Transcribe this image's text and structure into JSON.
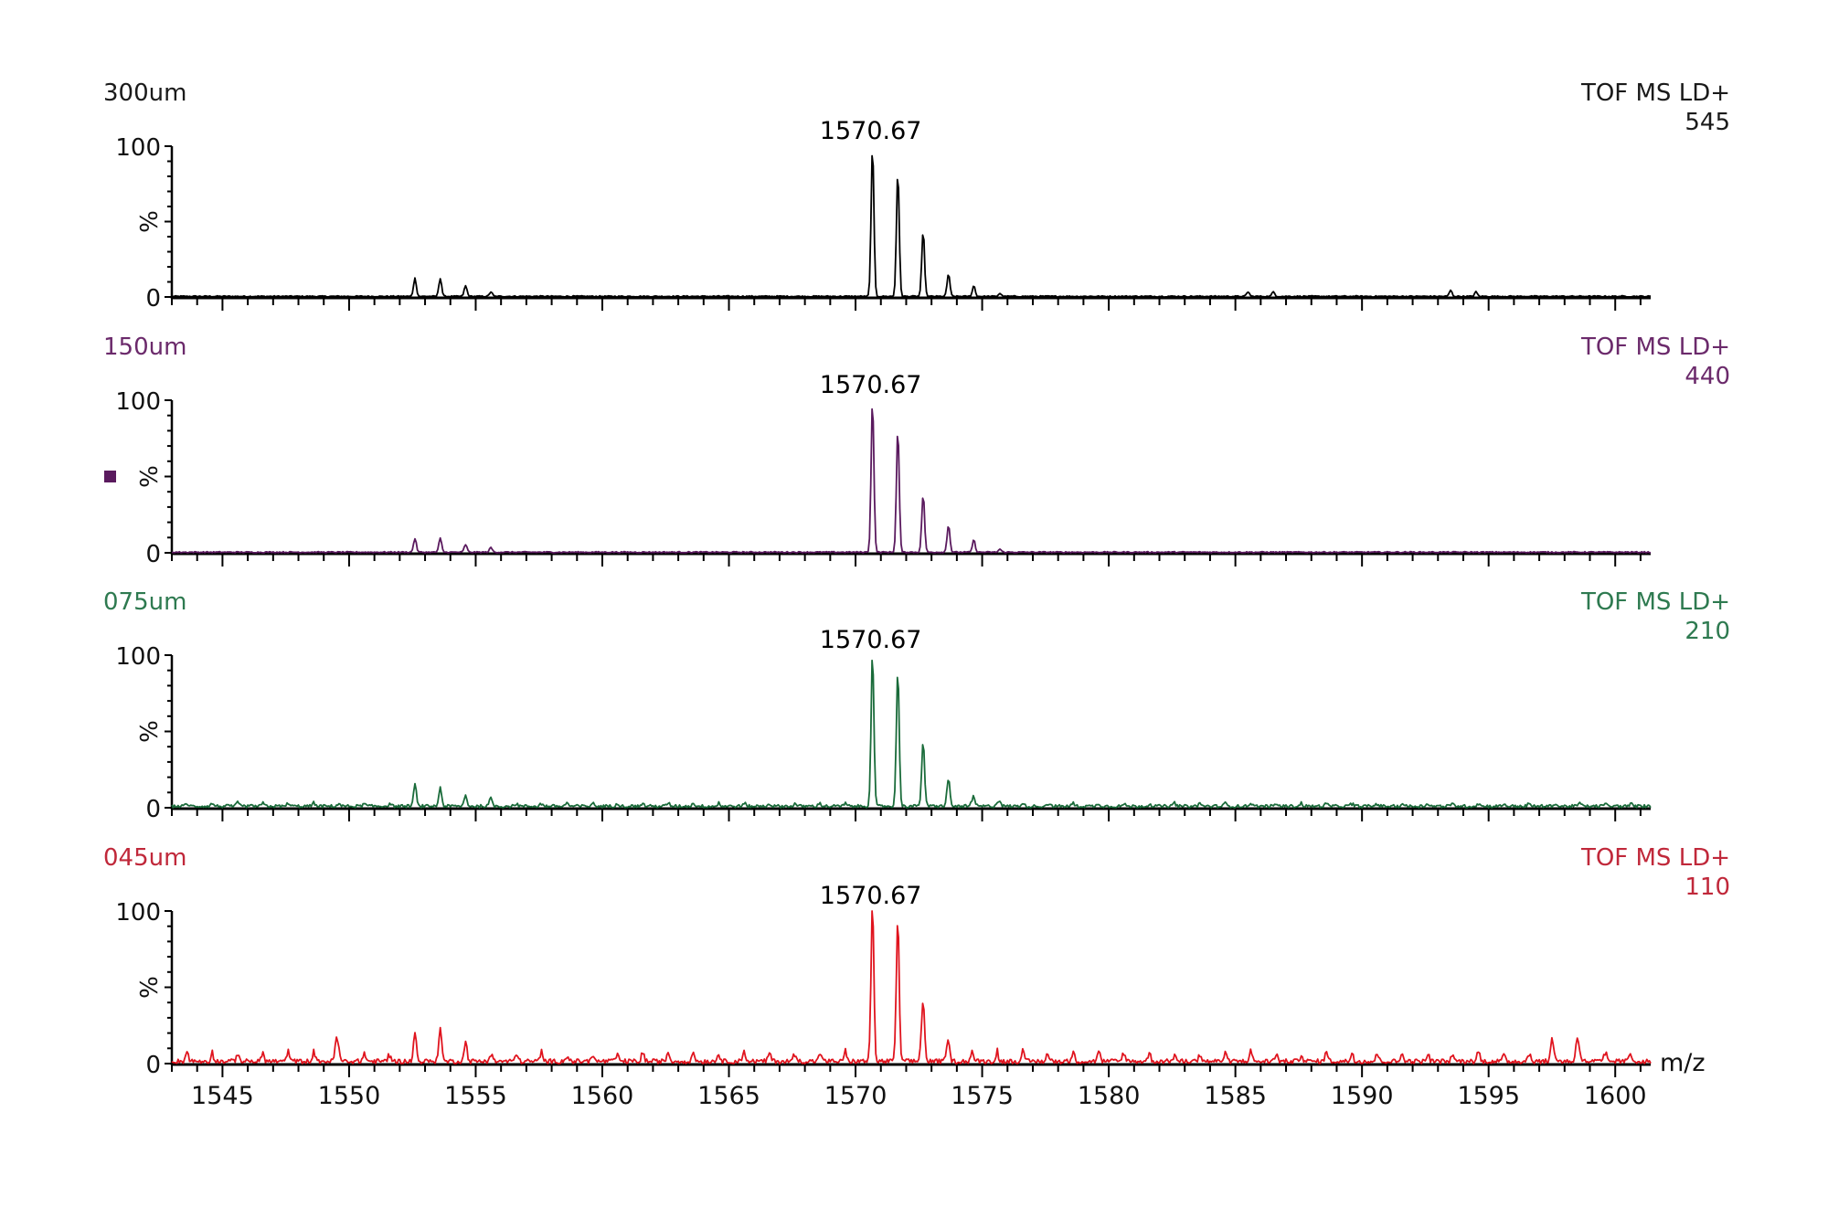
{
  "chart_data": {
    "type": "line",
    "title": "",
    "xlabel": "m/z",
    "ylabel": "%",
    "xlim": [
      1543.0,
      1601.4
    ],
    "ylim": [
      0,
      100
    ],
    "x_ticks": [
      1545,
      1550,
      1555,
      1560,
      1565,
      1570,
      1575,
      1580,
      1585,
      1590,
      1595,
      1600
    ],
    "y_ticks": [
      0,
      100
    ],
    "grid": false,
    "legend": "none",
    "panels": [
      {
        "name": "300um",
        "color": "#000000",
        "label_color": "#1a1a1a",
        "mode": "TOF MS LD+",
        "intensity": "545",
        "peak_label": "1570.67",
        "noise": 0.8,
        "noise_peaks": 0.0,
        "peaks": [
          {
            "mz": 1552.6,
            "pct": 12
          },
          {
            "mz": 1553.6,
            "pct": 12
          },
          {
            "mz": 1554.6,
            "pct": 7
          },
          {
            "mz": 1555.6,
            "pct": 3
          },
          {
            "mz": 1570.67,
            "pct": 100
          },
          {
            "mz": 1571.67,
            "pct": 83
          },
          {
            "mz": 1572.67,
            "pct": 43
          },
          {
            "mz": 1573.67,
            "pct": 15
          },
          {
            "mz": 1574.67,
            "pct": 7
          },
          {
            "mz": 1575.7,
            "pct": 2
          },
          {
            "mz": 1585.5,
            "pct": 3
          },
          {
            "mz": 1586.5,
            "pct": 3
          },
          {
            "mz": 1593.5,
            "pct": 4
          },
          {
            "mz": 1594.5,
            "pct": 3
          }
        ]
      },
      {
        "name": "150um",
        "color": "#5a1a5e",
        "label_color": "#6b2a6b",
        "mode": "TOF MS LD+",
        "intensity": "440",
        "peak_label": "1570.67",
        "marker": true,
        "noise": 0.8,
        "noise_peaks": 0.0,
        "peaks": [
          {
            "mz": 1552.6,
            "pct": 9
          },
          {
            "mz": 1553.6,
            "pct": 9
          },
          {
            "mz": 1554.6,
            "pct": 5
          },
          {
            "mz": 1555.6,
            "pct": 3
          },
          {
            "mz": 1570.67,
            "pct": 100
          },
          {
            "mz": 1571.67,
            "pct": 81
          },
          {
            "mz": 1572.67,
            "pct": 38
          },
          {
            "mz": 1573.67,
            "pct": 18
          },
          {
            "mz": 1574.67,
            "pct": 8
          },
          {
            "mz": 1575.7,
            "pct": 2
          }
        ]
      },
      {
        "name": "075um",
        "color": "#1a6b3a",
        "label_color": "#2e7a50",
        "mode": "TOF MS LD+",
        "intensity": "210",
        "peak_label": "1570.67",
        "noise": 2.0,
        "noise_peaks": 2.0,
        "peaks": [
          {
            "mz": 1552.6,
            "pct": 12
          },
          {
            "mz": 1553.6,
            "pct": 10
          },
          {
            "mz": 1554.6,
            "pct": 5
          },
          {
            "mz": 1555.6,
            "pct": 4
          },
          {
            "mz": 1570.67,
            "pct": 100
          },
          {
            "mz": 1571.67,
            "pct": 89
          },
          {
            "mz": 1572.67,
            "pct": 42
          },
          {
            "mz": 1573.67,
            "pct": 17
          },
          {
            "mz": 1574.67,
            "pct": 5
          },
          {
            "mz": 1575.7,
            "pct": 3
          }
        ]
      },
      {
        "name": "045um",
        "color": "#e0141e",
        "label_color": "#c0283a",
        "mode": "TOF MS LD+",
        "intensity": "110",
        "peak_label": "1570.67",
        "noise": 3.0,
        "noise_peaks": 6.0,
        "peaks": [
          {
            "mz": 1549.5,
            "pct": 15
          },
          {
            "mz": 1552.6,
            "pct": 14
          },
          {
            "mz": 1553.6,
            "pct": 18
          },
          {
            "mz": 1554.6,
            "pct": 7
          },
          {
            "mz": 1570.67,
            "pct": 100
          },
          {
            "mz": 1571.67,
            "pct": 91
          },
          {
            "mz": 1572.67,
            "pct": 39
          },
          {
            "mz": 1573.67,
            "pct": 11
          },
          {
            "mz": 1597.5,
            "pct": 13
          },
          {
            "mz": 1598.5,
            "pct": 15
          }
        ]
      }
    ]
  },
  "layout": {
    "x_axis_label": "m/z",
    "y_axis_label": "%",
    "y_top_label": "100",
    "y_bottom_label": "0"
  }
}
